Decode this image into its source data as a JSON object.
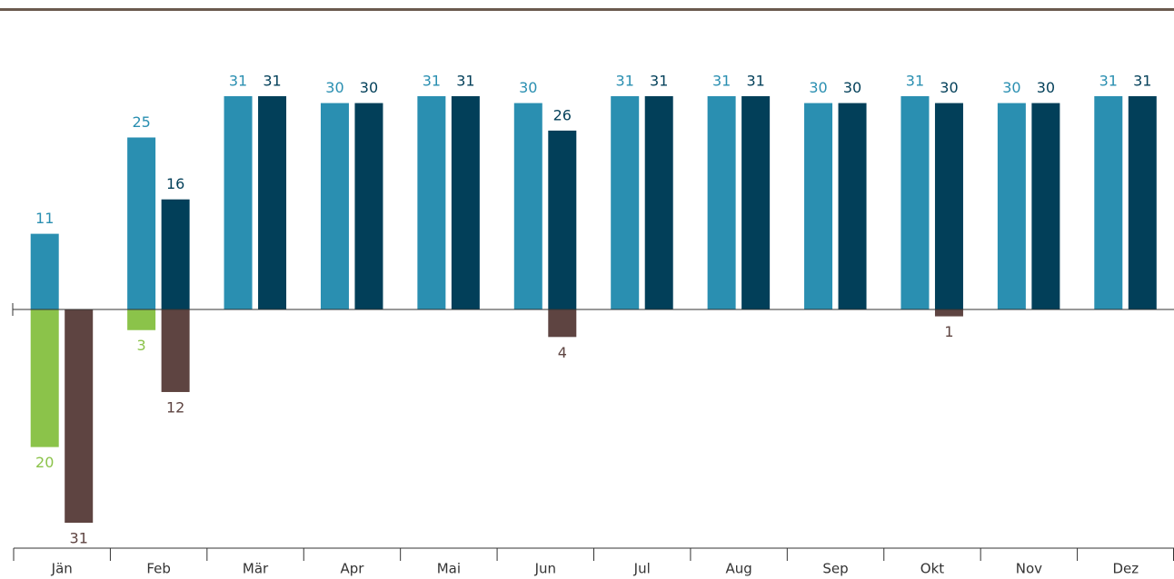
{
  "chart_data": {
    "type": "bar",
    "categories": [
      "Jän",
      "Feb",
      "Mär",
      "Apr",
      "Mai",
      "Jun",
      "Jul",
      "Aug",
      "Sep",
      "Okt",
      "Nov",
      "Dez"
    ],
    "ylim": [
      -31,
      31
    ],
    "series": [
      {
        "color": "#2a8fb1",
        "values": [
          11,
          25,
          31,
          30,
          31,
          30,
          31,
          31,
          30,
          31,
          30,
          31
        ]
      },
      {
        "color": "#023f59",
        "values": [
          null,
          16,
          31,
          30,
          31,
          26,
          31,
          31,
          30,
          30,
          30,
          31
        ]
      },
      {
        "color": "#8bc34a",
        "values": [
          -20,
          -3,
          null,
          null,
          null,
          null,
          null,
          null,
          null,
          null,
          null,
          null
        ],
        "value_labels": [
          "20",
          "3",
          null,
          null,
          null,
          null,
          null,
          null,
          null,
          null,
          null,
          null
        ]
      },
      {
        "color": "#5e4441",
        "values": [
          -31,
          -12,
          null,
          null,
          null,
          -4,
          null,
          null,
          null,
          -1,
          null,
          null
        ],
        "value_labels": [
          "31",
          "12",
          null,
          null,
          null,
          "4",
          null,
          null,
          null,
          "1",
          null,
          null
        ]
      }
    ]
  }
}
